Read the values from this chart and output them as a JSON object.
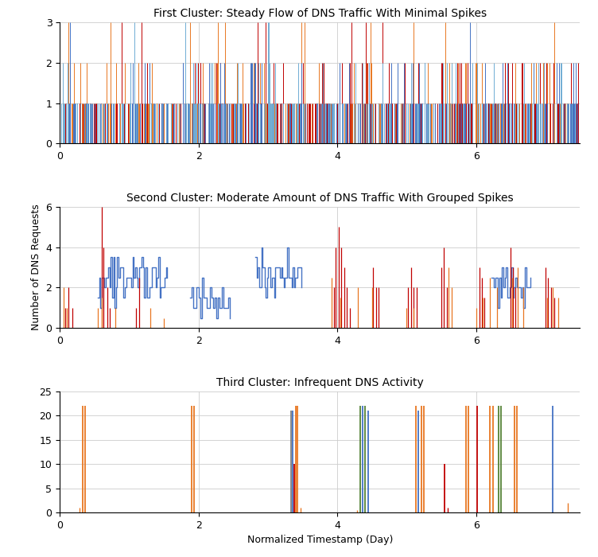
{
  "title1": "First Cluster: Steady Flow of DNS Traffic With Minimal Spikes",
  "title2": "Second Cluster: Moderate Amount of DNS Traffic With Grouped Spikes",
  "title3": "Third Cluster: Infrequent DNS Activity",
  "ylabel": "Number of DNS Requests",
  "xlabel": "Normalized Timestamp (Day)",
  "colors": {
    "blue": "#4472C4",
    "red": "#C00000",
    "orange": "#E87722",
    "cyan": "#70ADD4",
    "green": "#548235",
    "gray": "#808080"
  },
  "xlim": [
    0,
    7.5
  ],
  "ylim1": [
    0,
    3
  ],
  "ylim2": [
    0,
    6
  ],
  "ylim3": [
    0,
    25
  ],
  "xticks": [
    0,
    2,
    4,
    6
  ],
  "yticks1": [
    0,
    1,
    2,
    3
  ],
  "yticks2": [
    0,
    2,
    4,
    6
  ],
  "yticks3": [
    0,
    5,
    10,
    15,
    20,
    25
  ],
  "background": "#ffffff",
  "grid_color": "#cccccc"
}
